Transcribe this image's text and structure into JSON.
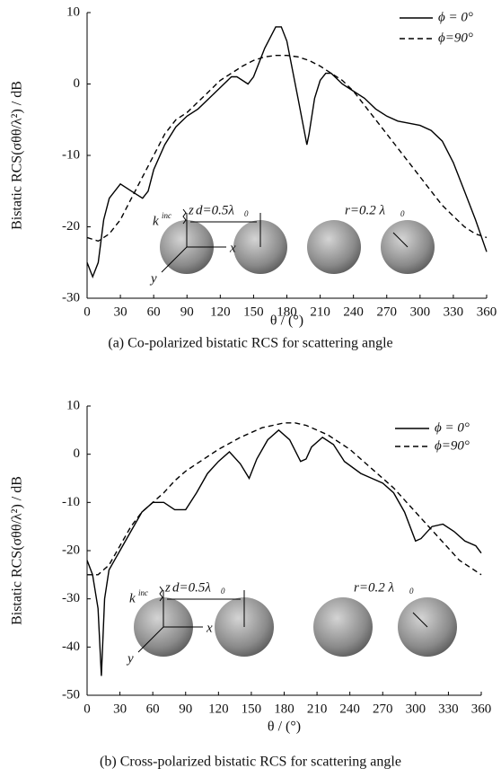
{
  "chart_data": [
    {
      "type": "line",
      "y_label": "Bistatic RCS(σθθ/λ²) / dB",
      "x_label": "θ / (°)",
      "caption": "(a) Co-polarized bistatic RCS for scattering angle",
      "xlim": [
        0,
        360
      ],
      "xticks": [
        0,
        30,
        60,
        90,
        120,
        150,
        180,
        210,
        240,
        270,
        300,
        330,
        360
      ],
      "ylim": [
        -30,
        10
      ],
      "yticks": [
        -30,
        -20,
        -10,
        0,
        10
      ],
      "legend": "upper right",
      "annotations": [
        "k",
        "inc",
        "z",
        "d=0.5λ",
        "0",
        "x",
        "y",
        "r=0.2 λ",
        "0"
      ],
      "series": [
        {
          "name": "ϕ = 0°",
          "color": "#000000",
          "dash": "solid",
          "x": [
            0,
            5,
            10,
            15,
            20,
            30,
            40,
            50,
            55,
            60,
            70,
            80,
            90,
            100,
            110,
            120,
            130,
            135,
            140,
            145,
            150,
            160,
            170,
            175,
            180,
            185,
            190,
            195,
            198,
            200,
            205,
            210,
            215,
            220,
            230,
            240,
            250,
            260,
            270,
            280,
            290,
            300,
            310,
            320,
            330,
            340,
            350,
            360
          ],
          "values": [
            -25,
            -27,
            -25,
            -19,
            -16,
            -14,
            -15,
            -16,
            -15,
            -12,
            -8.5,
            -6,
            -4.5,
            -3.5,
            -2,
            -0.5,
            1,
            1,
            0.5,
            0,
            1,
            5,
            8,
            8,
            6,
            2,
            -2,
            -6,
            -8.5,
            -7,
            -2,
            0.5,
            1.5,
            1.5,
            0,
            -1,
            -2,
            -3.5,
            -4.5,
            -5.2,
            -5.5,
            -5.8,
            -6.5,
            -8,
            -11,
            -15,
            -19,
            -23.5
          ]
        },
        {
          "name": "ϕ=90°",
          "color": "#000000",
          "dash": "dashed",
          "x": [
            0,
            10,
            20,
            30,
            40,
            50,
            60,
            70,
            80,
            90,
            100,
            110,
            120,
            130,
            140,
            150,
            160,
            170,
            180,
            190,
            200,
            210,
            220,
            230,
            240,
            250,
            260,
            270,
            280,
            290,
            300,
            310,
            320,
            330,
            340,
            350,
            360
          ],
          "values": [
            -21.5,
            -22,
            -21,
            -19,
            -16,
            -13,
            -10,
            -7,
            -5,
            -4,
            -2.5,
            -1,
            0.5,
            1.5,
            2.5,
            3.3,
            3.8,
            4,
            4,
            3.8,
            3.3,
            2.5,
            1.5,
            0.5,
            -1,
            -3,
            -5,
            -7,
            -9,
            -11,
            -13,
            -15,
            -17,
            -18.5,
            -20,
            -21,
            -21.5
          ]
        }
      ]
    },
    {
      "type": "line",
      "y_label": "Bistatic RCS(σθθ/λ²) / dB",
      "x_label": "θ / (°)",
      "caption": "(b) Cross-polarized bistatic RCS for scattering angle",
      "xlim": [
        0,
        360
      ],
      "xticks": [
        0,
        30,
        60,
        90,
        120,
        150,
        180,
        210,
        240,
        270,
        300,
        330,
        360
      ],
      "ylim": [
        -50,
        10
      ],
      "yticks": [
        -50,
        -40,
        -30,
        -20,
        -10,
        0,
        10
      ],
      "legend": "upper right",
      "annotations": [
        "k",
        "inc",
        "z",
        "d=0.5λ",
        "0",
        "x",
        "y",
        "r=0.2 λ",
        "0"
      ],
      "series": [
        {
          "name": "ϕ = 0°",
          "color": "#000000",
          "dash": "solid",
          "x": [
            0,
            5,
            10,
            13,
            16,
            20,
            30,
            40,
            50,
            60,
            70,
            80,
            90,
            100,
            110,
            120,
            130,
            140,
            148,
            155,
            165,
            175,
            185,
            195,
            200,
            205,
            215,
            225,
            235,
            250,
            260,
            270,
            280,
            290,
            300,
            305,
            315,
            325,
            335,
            345,
            355,
            360
          ],
          "values": [
            -22,
            -25,
            -32,
            -46,
            -30,
            -24,
            -20,
            -16,
            -12,
            -10,
            -10,
            -11.5,
            -11.5,
            -8,
            -4,
            -1.5,
            0.5,
            -2,
            -5,
            -1,
            3,
            5,
            3,
            -1.5,
            -1,
            1.5,
            3.5,
            2,
            -1.5,
            -4,
            -5,
            -6,
            -8,
            -12,
            -18,
            -17.5,
            -15,
            -14.5,
            -16,
            -18,
            -19,
            -20.5
          ]
        },
        {
          "name": "ϕ=90°",
          "color": "#000000",
          "dash": "dashed",
          "x": [
            0,
            10,
            20,
            30,
            40,
            50,
            60,
            70,
            80,
            90,
            100,
            120,
            140,
            160,
            180,
            190,
            200,
            220,
            240,
            260,
            280,
            300,
            320,
            340,
            360
          ],
          "values": [
            -25,
            -25,
            -23,
            -19,
            -15,
            -12,
            -10,
            -8,
            -5.5,
            -3.5,
            -2,
            1,
            3.5,
            5.5,
            6.5,
            6.5,
            6,
            4,
            1,
            -3,
            -7,
            -12,
            -17,
            -22,
            -25
          ]
        }
      ]
    }
  ]
}
